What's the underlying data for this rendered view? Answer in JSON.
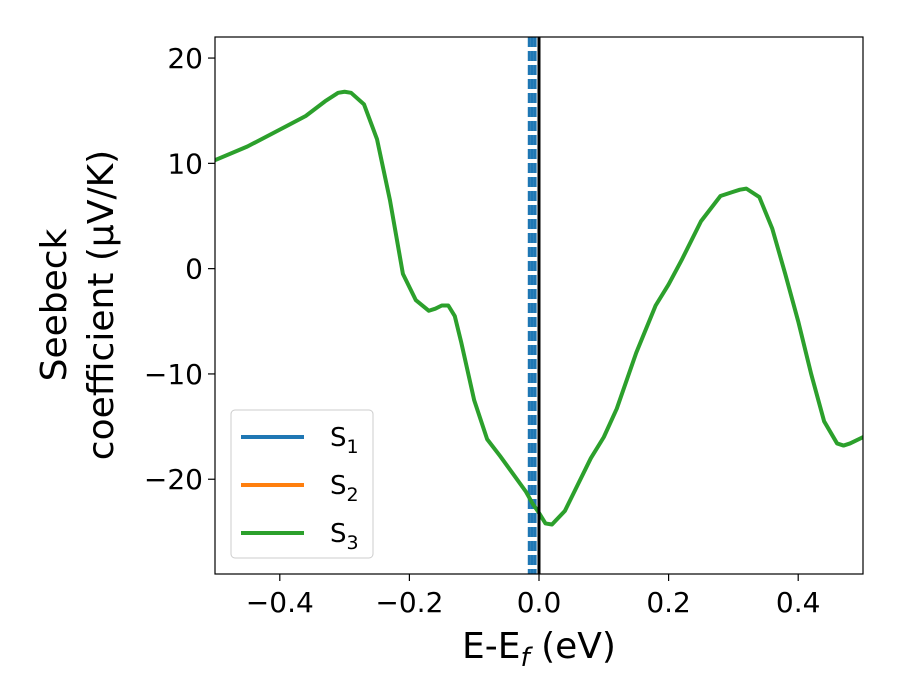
{
  "chart_data": {
    "type": "line",
    "xlabel": {
      "main": "E-E",
      "sub": "f",
      "unit": " (eV)"
    },
    "ylabel": {
      "line1": "Seebeck",
      "line2": "coefficient  (μV/K)"
    },
    "xlim": [
      -0.5,
      0.5
    ],
    "ylim": [
      -29,
      22
    ],
    "xticks": [
      -0.4,
      -0.2,
      0.0,
      0.2,
      0.4
    ],
    "xtick_labels": [
      "−0.4",
      "−0.2",
      "0.0",
      "0.2",
      "0.4"
    ],
    "yticks": [
      -20,
      -10,
      0,
      10,
      20
    ],
    "ytick_labels": [
      "−20",
      "−10",
      "0",
      "10",
      "20"
    ],
    "legend_position": "lower-left",
    "grid": false,
    "series": [
      {
        "name": "S",
        "sub": "1",
        "color": "#1f77b4",
        "x": [],
        "y": []
      },
      {
        "name": "S",
        "sub": "2",
        "color": "#ff7f0e",
        "x": [],
        "y": []
      },
      {
        "name": "S",
        "sub": "3",
        "color": "#2ca02c",
        "x": [
          -0.5,
          -0.45,
          -0.4,
          -0.36,
          -0.33,
          -0.31,
          -0.3,
          -0.29,
          -0.27,
          -0.25,
          -0.23,
          -0.21,
          -0.19,
          -0.17,
          -0.16,
          -0.15,
          -0.14,
          -0.13,
          -0.12,
          -0.1,
          -0.08,
          -0.06,
          -0.04,
          -0.02,
          -0.01,
          0.0,
          0.01,
          0.02,
          0.04,
          0.06,
          0.08,
          0.1,
          0.12,
          0.15,
          0.18,
          0.2,
          0.22,
          0.25,
          0.28,
          0.3,
          0.31,
          0.32,
          0.34,
          0.36,
          0.38,
          0.4,
          0.42,
          0.44,
          0.46,
          0.47,
          0.48,
          0.5
        ],
        "y": [
          10.3,
          11.6,
          13.2,
          14.5,
          15.9,
          16.7,
          16.8,
          16.7,
          15.6,
          12.3,
          6.5,
          -0.5,
          -3.0,
          -4.0,
          -3.8,
          -3.5,
          -3.5,
          -4.5,
          -7.0,
          -12.5,
          -16.2,
          -17.8,
          -19.5,
          -21.2,
          -22.3,
          -23.2,
          -24.2,
          -24.3,
          -23.0,
          -20.5,
          -18.0,
          -16.0,
          -13.3,
          -8.0,
          -3.5,
          -1.5,
          0.8,
          4.5,
          6.9,
          7.3,
          7.5,
          7.6,
          6.8,
          3.8,
          -0.5,
          -5.0,
          -10.0,
          -14.5,
          -16.6,
          -16.8,
          -16.6,
          -16.0
        ]
      }
    ],
    "dashed_lines_x": [
      -0.015,
      -0.0105,
      -0.006
    ],
    "fermi_line_x": 0.0
  }
}
